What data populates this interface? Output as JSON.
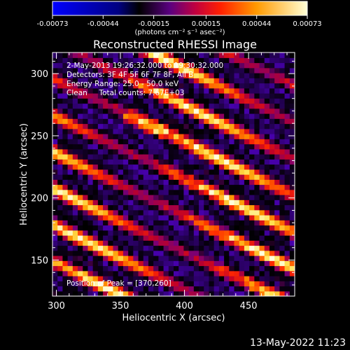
{
  "chart_data": {
    "type": "heatmap",
    "title": "Reconstructed RHESSI Image",
    "xlabel": "Heliocentric X (arcsec)",
    "ylabel": "Heliocentric Y (arcsec)",
    "xlim": [
      297,
      486
    ],
    "ylim": [
      121,
      317
    ],
    "x_ticks": [
      300,
      350,
      400,
      450
    ],
    "y_ticks": [
      150,
      200,
      250,
      300
    ],
    "annotations": [
      "2-May-2013 19:26:32.000 to 19:30:32.000",
      "Detectors: 3F 4F 5F 6F 7F 8F, All B",
      "Energy Range: 25.0 - 50.0 keV",
      "Clean     Total counts: 7.67E+03",
      "Position of Peak = [370,260]"
    ],
    "peak": {
      "x": 370,
      "y": 260
    },
    "stripe_pattern": {
      "slope": -0.5,
      "period": 29.5,
      "min": -0.00073,
      "max": 0.00073
    },
    "colorbar": {
      "ticks": [
        "-0.00073",
        "-0.00044",
        "-0.00015",
        "0.00015",
        "0.00044",
        "0.00073"
      ],
      "range": [
        -0.00073,
        0.00073
      ],
      "units": "(photons cm⁻² s⁻¹ asec⁻²)"
    },
    "colormap": [
      "#0000ff",
      "#000000",
      "#8b00b0",
      "#ff2000",
      "#ff9a00",
      "#ffffd6"
    ],
    "footer_timestamp": "13-May-2022 11:23"
  }
}
